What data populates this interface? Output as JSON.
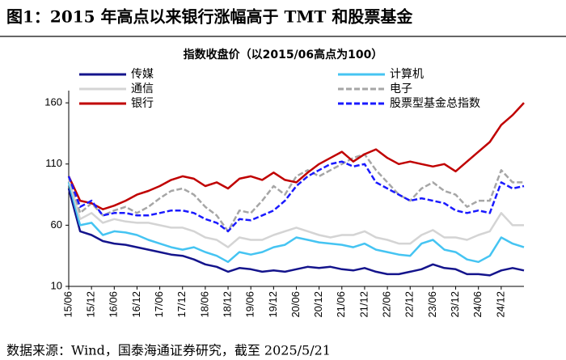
{
  "chart_data": {
    "type": "line",
    "title": "图1：2015 年高点以来银行涨幅高于 TMT 和股票基金",
    "subtitle": "指数收盘价（以2015/06高点为100）",
    "source": "数据来源：Wind，国泰海通证券研究，截至 2025/5/21",
    "categories": [
      "15/06",
      null,
      "15/12",
      null,
      "16/06",
      null,
      "16/12",
      null,
      "17/06",
      null,
      "17/12",
      null,
      "18/06",
      null,
      "18/12",
      null,
      "19/06",
      null,
      "19/12",
      null,
      "20/06",
      null,
      "20/12",
      null,
      "21/06",
      null,
      "21/12",
      null,
      "22/06",
      null,
      "22/12",
      null,
      "23/06",
      null,
      "23/12",
      null,
      "24/06",
      null,
      "24/12",
      null,
      null
    ],
    "ylim": [
      10,
      170
    ],
    "yticks": [
      10,
      60,
      110,
      160
    ],
    "series": [
      {
        "name": "传媒",
        "color": "#14148c",
        "dashed": false,
        "values": [
          90,
          55,
          52,
          47,
          45,
          44,
          42,
          40,
          38,
          36,
          35,
          32,
          28,
          26,
          22,
          25,
          24,
          22,
          23,
          22,
          24,
          26,
          25,
          26,
          24,
          23,
          25,
          22,
          20,
          20,
          22,
          24,
          28,
          25,
          24,
          20,
          20,
          19,
          23,
          25,
          23
        ]
      },
      {
        "name": "计算机",
        "color": "#45c4f2",
        "dashed": false,
        "values": [
          95,
          60,
          62,
          52,
          55,
          54,
          52,
          48,
          45,
          42,
          40,
          42,
          38,
          35,
          30,
          38,
          36,
          38,
          42,
          44,
          50,
          48,
          46,
          45,
          44,
          42,
          45,
          40,
          38,
          36,
          35,
          45,
          48,
          40,
          38,
          32,
          30,
          35,
          50,
          45,
          42
        ]
      },
      {
        "name": "通信",
        "color": "#d4d4d4",
        "dashed": false,
        "values": [
          98,
          65,
          70,
          62,
          65,
          63,
          62,
          62,
          60,
          58,
          58,
          55,
          50,
          48,
          42,
          50,
          48,
          48,
          52,
          55,
          58,
          55,
          52,
          50,
          52,
          52,
          55,
          50,
          48,
          45,
          45,
          52,
          56,
          50,
          50,
          48,
          52,
          55,
          70,
          60,
          60
        ]
      },
      {
        "name": "电子",
        "color": "#a6a6a6",
        "dashed": true,
        "values": [
          100,
          70,
          78,
          68,
          72,
          75,
          70,
          75,
          82,
          88,
          90,
          85,
          75,
          68,
          55,
          72,
          70,
          80,
          92,
          85,
          100,
          105,
          100,
          105,
          110,
          115,
          118,
          105,
          95,
          85,
          80,
          90,
          95,
          88,
          85,
          75,
          80,
          80,
          105,
          95,
          95
        ]
      },
      {
        "name": "银行",
        "color": "#c00000",
        "dashed": false,
        "values": [
          100,
          80,
          78,
          73,
          76,
          80,
          85,
          88,
          92,
          97,
          100,
          98,
          92,
          95,
          90,
          98,
          100,
          97,
          103,
          97,
          95,
          103,
          110,
          115,
          120,
          112,
          118,
          122,
          115,
          110,
          112,
          110,
          108,
          110,
          104,
          112,
          120,
          128,
          142,
          150,
          160
        ]
      },
      {
        "name": "股票型基金总指数",
        "color": "#1a1aff",
        "dashed": true,
        "values": [
          100,
          75,
          80,
          68,
          70,
          70,
          68,
          68,
          70,
          72,
          72,
          70,
          65,
          62,
          55,
          65,
          64,
          68,
          72,
          80,
          92,
          100,
          105,
          110,
          112,
          108,
          110,
          95,
          90,
          85,
          80,
          82,
          80,
          78,
          72,
          70,
          72,
          70,
          95,
          90,
          92
        ]
      }
    ]
  }
}
